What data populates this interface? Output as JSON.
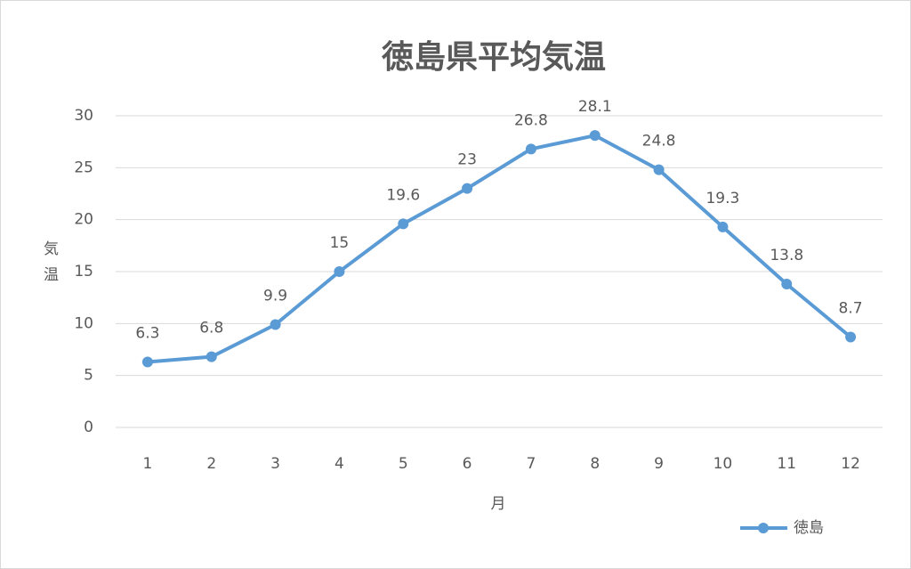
{
  "chart_data": {
    "type": "line",
    "title": "徳島県平均気温",
    "x_label": "月",
    "y_label": "気温",
    "categories": [
      "1",
      "2",
      "3",
      "4",
      "5",
      "6",
      "7",
      "8",
      "9",
      "10",
      "11",
      "12"
    ],
    "series": [
      {
        "name": "徳島",
        "color": "#5b9bd5",
        "values": [
          6.3,
          6.8,
          9.9,
          15,
          19.6,
          23,
          26.8,
          28.1,
          24.8,
          19.3,
          13.8,
          8.7
        ]
      }
    ],
    "ylim": [
      0,
      30
    ],
    "yticks": [
      0,
      5,
      10,
      15,
      20,
      25,
      30
    ],
    "grid": true,
    "legend": "bottom-right",
    "data_labels": true
  }
}
